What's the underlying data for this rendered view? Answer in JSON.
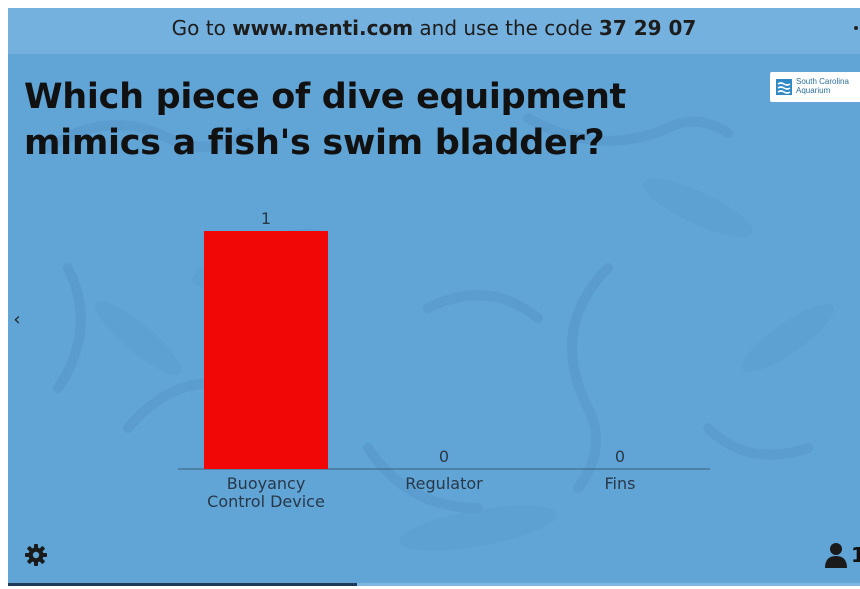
{
  "banner": {
    "prefix": "Go to ",
    "url": "www.menti.com",
    "middle": " and use the code ",
    "code": "37 29 07"
  },
  "question": "Which piece of dive equipment mimics a fish's swim bladder?",
  "logo": {
    "line1": "South Carolina",
    "line2": "Aquarium"
  },
  "icons": {
    "prev": "chevron-left-icon",
    "settings": "gear-icon",
    "audience": "user-icon"
  },
  "colors": {
    "background": "#61a4d6",
    "bar": "#f20707"
  },
  "progress": 0.41,
  "chart_data": {
    "type": "bar",
    "categories": [
      "Buoyancy Control Device",
      "Regulator",
      "Fins"
    ],
    "category_lines": [
      [
        "Buoyancy",
        "Control Device"
      ],
      [
        "Regulator"
      ],
      [
        "Fins"
      ]
    ],
    "values": [
      1,
      0,
      0
    ],
    "title": "",
    "xlabel": "",
    "ylabel": "",
    "ylim": [
      0,
      1
    ],
    "grid": false
  }
}
